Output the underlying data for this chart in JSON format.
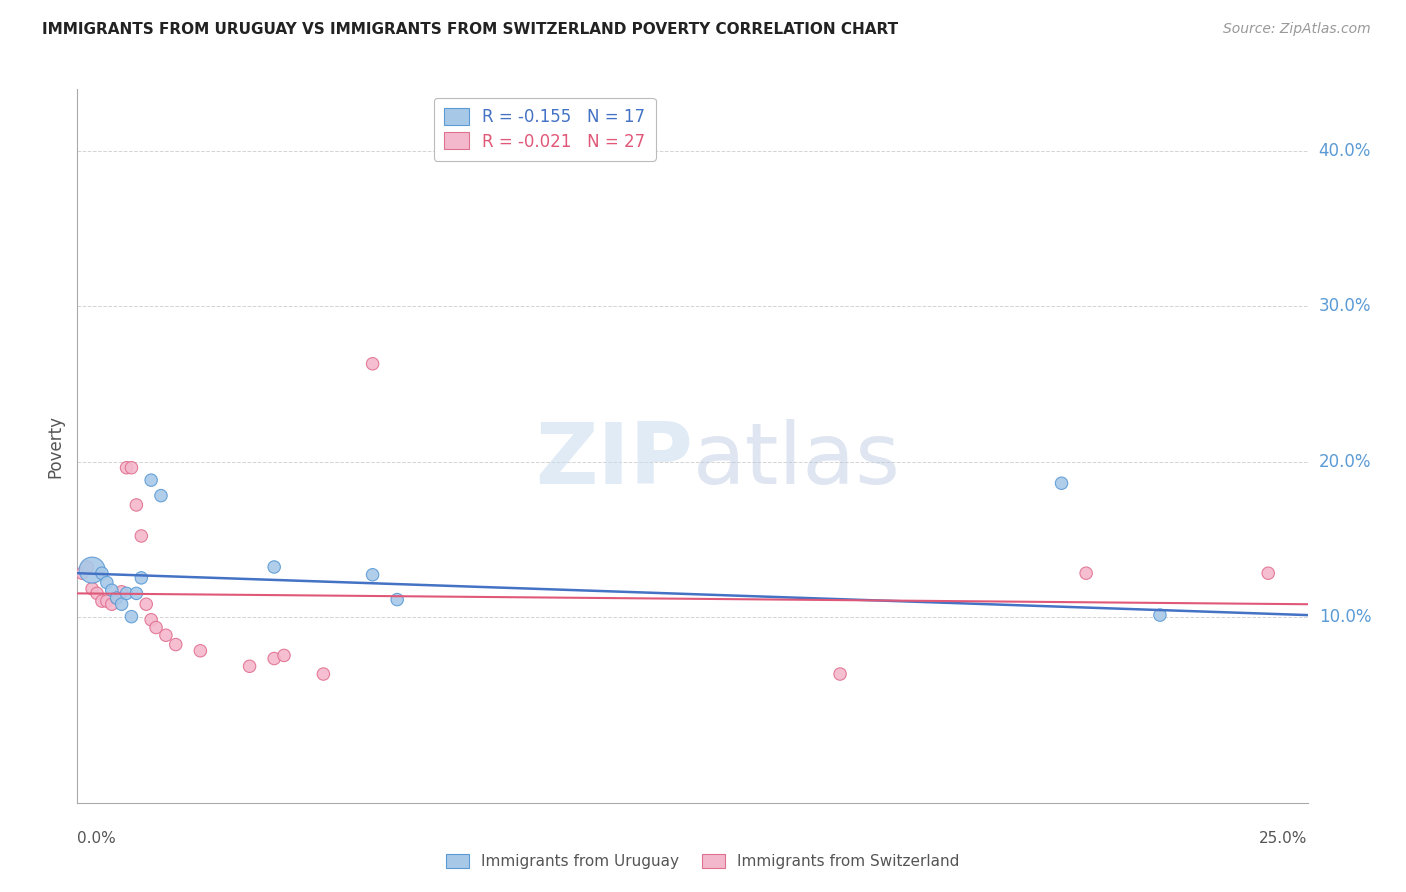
{
  "title": "IMMIGRANTS FROM URUGUAY VS IMMIGRANTS FROM SWITZERLAND POVERTY CORRELATION CHART",
  "source": "Source: ZipAtlas.com",
  "ylabel": "Poverty",
  "color_uruguay": "#a8c8e8",
  "color_switzerland": "#f4b8cc",
  "edge_color_uruguay": "#5b9bd5",
  "edge_color_switzerland": "#e07090",
  "trendline_color_uruguay": "#4472c4",
  "trendline_color_switzerland": "#e05878",
  "legend_R_uruguay": "-0.155",
  "legend_N_uruguay": "17",
  "legend_R_switzerland": "-0.021",
  "legend_N_switzerland": "27",
  "watermark_zip": "ZIP",
  "watermark_atlas": "atlas",
  "xlim": [
    0.0,
    0.25
  ],
  "ylim": [
    -0.02,
    0.44
  ],
  "ytick_vals": [
    0.1,
    0.2,
    0.3,
    0.4
  ],
  "ytick_labels": [
    "10.0%",
    "20.0%",
    "30.0%",
    "40.0%"
  ],
  "background_color": "#ffffff",
  "grid_color": "#d0d0d0",
  "tick_label_color": "#5b9bd5",
  "title_color": "#222222",
  "axis_color": "#aaaaaa",
  "uruguay_x": [
    0.003,
    0.005,
    0.006,
    0.007,
    0.008,
    0.009,
    0.01,
    0.011,
    0.012,
    0.013,
    0.015,
    0.017,
    0.04,
    0.06,
    0.065,
    0.2,
    0.22
  ],
  "uruguay_y": [
    0.13,
    0.128,
    0.122,
    0.117,
    0.112,
    0.108,
    0.115,
    0.1,
    0.115,
    0.125,
    0.188,
    0.178,
    0.132,
    0.127,
    0.111,
    0.186,
    0.101
  ],
  "uruguay_sizes": [
    350,
    80,
    80,
    80,
    80,
    80,
    80,
    80,
    80,
    80,
    80,
    80,
    80,
    80,
    80,
    80,
    80
  ],
  "switzerland_x": [
    0.001,
    0.002,
    0.003,
    0.004,
    0.005,
    0.006,
    0.007,
    0.008,
    0.009,
    0.01,
    0.011,
    0.012,
    0.013,
    0.014,
    0.015,
    0.016,
    0.018,
    0.02,
    0.025,
    0.035,
    0.04,
    0.042,
    0.05,
    0.06,
    0.155,
    0.205,
    0.242
  ],
  "switzerland_y": [
    0.128,
    0.132,
    0.118,
    0.115,
    0.11,
    0.11,
    0.108,
    0.112,
    0.116,
    0.196,
    0.196,
    0.172,
    0.152,
    0.108,
    0.098,
    0.093,
    0.088,
    0.082,
    0.078,
    0.068,
    0.073,
    0.075,
    0.063,
    0.263,
    0.063,
    0.128,
    0.128
  ],
  "switzerland_sizes": [
    80,
    80,
    80,
    80,
    80,
    80,
    80,
    80,
    80,
    80,
    80,
    80,
    80,
    80,
    80,
    80,
    80,
    80,
    80,
    80,
    80,
    80,
    80,
    80,
    80,
    80,
    80
  ],
  "trend_uruguay_y0": 0.128,
  "trend_uruguay_y1": 0.101,
  "trend_switzerland_y0": 0.115,
  "trend_switzerland_y1": 0.108
}
